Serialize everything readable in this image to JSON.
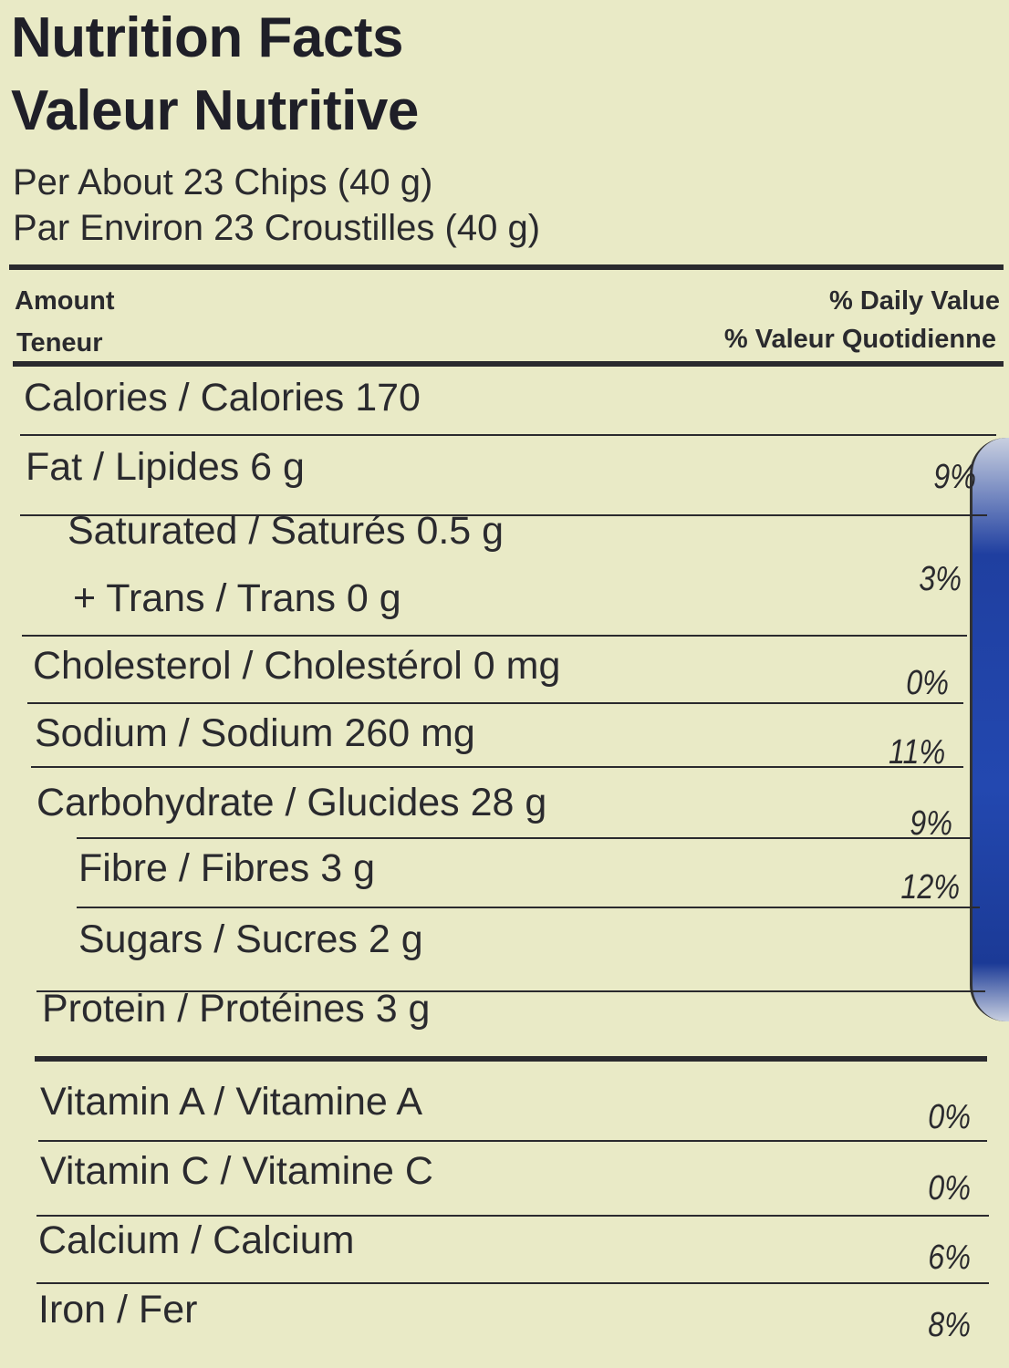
{
  "title_en": "Nutrition Facts",
  "title_fr": "Valeur Nutritive",
  "serving_en": "Per About 23 Chips (40 g)",
  "serving_fr": "Par Environ 23 Croustilles (40 g)",
  "header": {
    "amount_en": "Amount",
    "amount_fr": "Teneur",
    "dv_en": "% Daily Value",
    "dv_fr": "% Valeur Quotidienne"
  },
  "rows": [
    {
      "label": "Calories / Calories 170",
      "dv": ""
    },
    {
      "label": "Fat / Lipides 6 g",
      "dv": "9%"
    },
    {
      "label": "Saturated / Saturés 0.5 g",
      "dv": "3%"
    },
    {
      "label": "+ Trans / Trans 0 g",
      "dv": ""
    },
    {
      "label": "Cholesterol / Cholestérol 0 mg",
      "dv": "0%"
    },
    {
      "label": "Sodium / Sodium 260 mg",
      "dv": "11%"
    },
    {
      "label": "Carbohydrate / Glucides 28 g",
      "dv": "9%"
    },
    {
      "label": "Fibre / Fibres 3 g",
      "dv": "12%"
    },
    {
      "label": "Sugars / Sucres 2 g",
      "dv": ""
    },
    {
      "label": "Protein / Protéines 3 g",
      "dv": ""
    },
    {
      "label": "Vitamin A / Vitamine A",
      "dv": "0%"
    },
    {
      "label": "Vitamin C / Vitamine C",
      "dv": "0%"
    },
    {
      "label": "Calcium / Calcium",
      "dv": "6%"
    },
    {
      "label": "Iron / Fer",
      "dv": "8%"
    }
  ]
}
